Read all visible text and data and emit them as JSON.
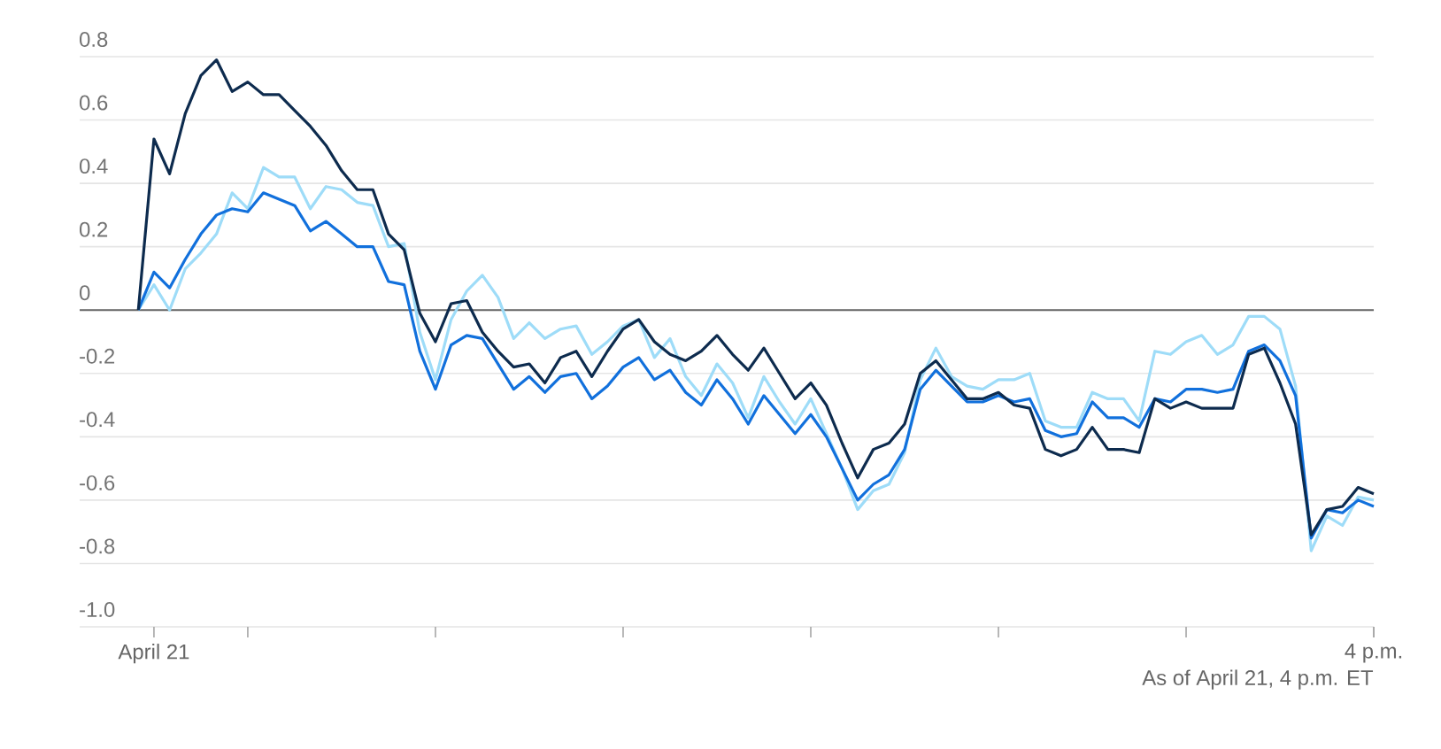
{
  "chart_data": {
    "type": "line",
    "categories": [
      null,
      "April 21",
      null,
      null,
      null,
      null,
      null,
      null,
      null,
      null,
      null,
      null,
      null,
      null,
      null,
      null,
      null,
      null,
      null,
      null,
      null,
      null,
      null,
      null,
      null,
      null,
      null,
      null,
      null,
      null,
      null,
      null,
      null,
      null,
      null,
      null,
      null,
      null,
      null,
      null,
      null,
      null,
      null,
      null,
      null,
      null,
      null,
      null,
      null,
      null,
      null,
      null,
      null,
      null,
      null,
      null,
      null,
      null,
      null,
      null,
      null,
      null,
      null,
      null,
      null,
      null,
      null,
      null,
      null,
      null,
      null,
      null,
      null,
      null,
      null,
      null,
      null,
      null,
      null,
      "4 p.m."
    ],
    "series": [
      {
        "color": "#9edcf8",
        "values": [
          0,
          0.08,
          0.0,
          0.13,
          0.18,
          0.24,
          0.37,
          0.32,
          0.45,
          0.42,
          0.42,
          0.32,
          0.39,
          0.38,
          0.34,
          0.33,
          0.2,
          0.21,
          -0.07,
          -0.22,
          -0.03,
          0.06,
          0.11,
          0.04,
          -0.09,
          -0.04,
          -0.09,
          -0.06,
          -0.05,
          -0.14,
          -0.1,
          -0.05,
          -0.03,
          -0.15,
          -0.09,
          -0.21,
          -0.27,
          -0.17,
          -0.23,
          -0.34,
          -0.21,
          -0.29,
          -0.36,
          -0.28,
          -0.39,
          -0.5,
          -0.63,
          -0.57,
          -0.55,
          -0.45,
          -0.22,
          -0.12,
          -0.21,
          -0.24,
          -0.25,
          -0.22,
          -0.22,
          -0.2,
          -0.35,
          -0.37,
          -0.37,
          -0.26,
          -0.28,
          -0.28,
          -0.35,
          -0.13,
          -0.14,
          -0.1,
          -0.08,
          -0.14,
          -0.11,
          -0.02,
          -0.02,
          -0.06,
          -0.24,
          -0.76,
          -0.65,
          -0.68,
          -0.59,
          -0.6
        ]
      },
      {
        "color": "#1170dc",
        "values": [
          0,
          0.12,
          0.07,
          0.16,
          0.24,
          0.3,
          0.32,
          0.31,
          0.37,
          0.35,
          0.33,
          0.25,
          0.28,
          0.24,
          0.2,
          0.2,
          0.09,
          0.08,
          -0.13,
          -0.25,
          -0.11,
          -0.08,
          -0.09,
          -0.17,
          -0.25,
          -0.21,
          -0.26,
          -0.21,
          -0.2,
          -0.28,
          -0.24,
          -0.18,
          -0.15,
          -0.22,
          -0.19,
          -0.26,
          -0.3,
          -0.22,
          -0.28,
          -0.36,
          -0.27,
          -0.33,
          -0.39,
          -0.33,
          -0.4,
          -0.5,
          -0.6,
          -0.55,
          -0.52,
          -0.44,
          -0.25,
          -0.19,
          -0.24,
          -0.29,
          -0.29,
          -0.27,
          -0.29,
          -0.28,
          -0.38,
          -0.4,
          -0.39,
          -0.29,
          -0.34,
          -0.34,
          -0.37,
          -0.28,
          -0.29,
          -0.25,
          -0.25,
          -0.26,
          -0.25,
          -0.13,
          -0.11,
          -0.16,
          -0.27,
          -0.72,
          -0.63,
          -0.64,
          -0.6,
          -0.62
        ]
      },
      {
        "color": "#0d2b4e",
        "values": [
          0,
          0.54,
          0.43,
          0.62,
          0.74,
          0.79,
          0.69,
          0.72,
          0.68,
          0.68,
          0.63,
          0.58,
          0.52,
          0.44,
          0.38,
          0.38,
          0.24,
          0.19,
          -0.01,
          -0.1,
          0.02,
          0.03,
          -0.07,
          -0.13,
          -0.18,
          -0.17,
          -0.23,
          -0.15,
          -0.13,
          -0.21,
          -0.13,
          -0.06,
          -0.03,
          -0.1,
          -0.14,
          -0.16,
          -0.13,
          -0.08,
          -0.14,
          -0.19,
          -0.12,
          -0.2,
          -0.28,
          -0.23,
          -0.3,
          -0.42,
          -0.53,
          -0.44,
          -0.42,
          -0.36,
          -0.2,
          -0.16,
          -0.22,
          -0.28,
          -0.28,
          -0.26,
          -0.3,
          -0.31,
          -0.44,
          -0.46,
          -0.44,
          -0.37,
          -0.44,
          -0.44,
          -0.45,
          -0.28,
          -0.31,
          -0.29,
          -0.31,
          -0.31,
          -0.31,
          -0.14,
          -0.12,
          -0.23,
          -0.36,
          -0.71,
          -0.63,
          -0.62,
          -0.56,
          -0.58
        ]
      }
    ],
    "ylim": [
      -1.0,
      0.8
    ],
    "yticks": [
      {
        "value": -1.0,
        "label": "-1.0"
      },
      {
        "value": -0.8,
        "label": "-0.8"
      },
      {
        "value": -0.6,
        "label": "-0.6"
      },
      {
        "value": -0.4,
        "label": "-0.4"
      },
      {
        "value": -0.2,
        "label": "-0.2"
      },
      0,
      {
        "value": 0.2,
        "label": "0.2"
      },
      {
        "value": 0.4,
        "label": "0.4"
      },
      {
        "value": 0.6,
        "label": "0.6"
      },
      {
        "value": 0.8,
        "label": "0.8"
      }
    ],
    "grid": "y",
    "line_style": "solid",
    "ref_lines": [
      {
        "axis": "y",
        "value": 0,
        "color": "#666666"
      }
    ],
    "annotations": [
      "As of April 21, 4 p.m. ET"
    ]
  }
}
